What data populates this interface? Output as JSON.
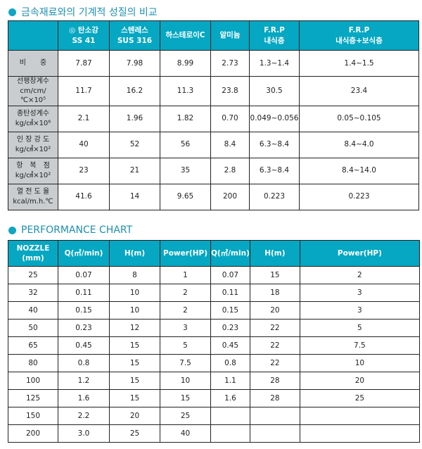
{
  "section1": {
    "title": "금속재료와의 기계적 성질의 비교",
    "headers": [
      [
        "",
        ""
      ],
      [
        "◎ 탄소강",
        "SS 41"
      ],
      [
        "스텐레스",
        "SUS 316"
      ],
      [
        "하스테로이C",
        ""
      ],
      [
        "알미늄",
        ""
      ],
      [
        "F.R.P",
        "내식층"
      ],
      [
        "F.R.P",
        "내식층+보식층"
      ]
    ],
    "rows": [
      {
        "label": [
          "비　　중",
          ""
        ],
        "values": [
          "7.87",
          "7.98",
          "8.99",
          "2.73",
          "1.3~1.4",
          "1.4~1.5"
        ]
      },
      {
        "label": [
          "선팽창계수",
          "cm/cm/℃×10⁵"
        ],
        "values": [
          "11.7",
          "16.2",
          "11.3",
          "23.8",
          "30.5",
          "23.4"
        ]
      },
      {
        "label": [
          "종탄성계수",
          "kg/㎠×10⁶"
        ],
        "values": [
          "2.1",
          "1.96",
          "1.82",
          "0.70",
          "0.049~0.056",
          "0.05~0.105"
        ]
      },
      {
        "label": [
          "인 장 강 도",
          "kg/㎠×10²"
        ],
        "values": [
          "40",
          "52",
          "56",
          "8.4",
          "6.3~8.4",
          "8.4~4.0"
        ]
      },
      {
        "label": [
          "항　복　점",
          "kg/㎠×10²"
        ],
        "values": [
          "23",
          "21",
          "35",
          "2.8",
          "6.3~8.4",
          "8.4~14.0"
        ]
      },
      {
        "label": [
          "열 전 도 율",
          "kcal/m.h.℃"
        ],
        "values": [
          "41.6",
          "14",
          "9.65",
          "200",
          "0.223",
          "0.223"
        ]
      }
    ]
  },
  "section2": {
    "title": "PERFORMANCE CHART",
    "headers": [
      [
        "NOZZLE",
        "(mm)"
      ],
      [
        "Q(㎥/min)",
        ""
      ],
      [
        "H(m)",
        ""
      ],
      [
        "Power(HP)",
        ""
      ],
      [
        "Q(㎥/min)",
        ""
      ],
      [
        "H(m)",
        ""
      ],
      [
        "Power(HP)",
        ""
      ]
    ],
    "rows": [
      [
        "25",
        "0.07",
        "8",
        "1",
        "0.07",
        "15",
        "2"
      ],
      [
        "32",
        "0.11",
        "10",
        "2",
        "0.11",
        "18",
        "3"
      ],
      [
        "40",
        "0.15",
        "10",
        "2",
        "0.15",
        "20",
        "3"
      ],
      [
        "50",
        "0.23",
        "12",
        "3",
        "0.23",
        "22",
        "5"
      ],
      [
        "65",
        "0.45",
        "15",
        "5",
        "0.45",
        "22",
        "7.5"
      ],
      [
        "80",
        "0.8",
        "15",
        "7.5",
        "0.8",
        "22",
        "10"
      ],
      [
        "100",
        "1.2",
        "15",
        "10",
        "1.1",
        "28",
        "20"
      ],
      [
        "125",
        "1.6",
        "15",
        "15",
        "1.6",
        "28",
        "25"
      ],
      [
        "150",
        "2.2",
        "20",
        "25",
        "",
        "",
        ""
      ],
      [
        "200",
        "3.0",
        "25",
        "40",
        "",
        "",
        ""
      ]
    ]
  },
  "colors": {
    "header_bg": "#05a7c2",
    "label_bg": "#cacdcf",
    "title": "#1f8fb0"
  }
}
